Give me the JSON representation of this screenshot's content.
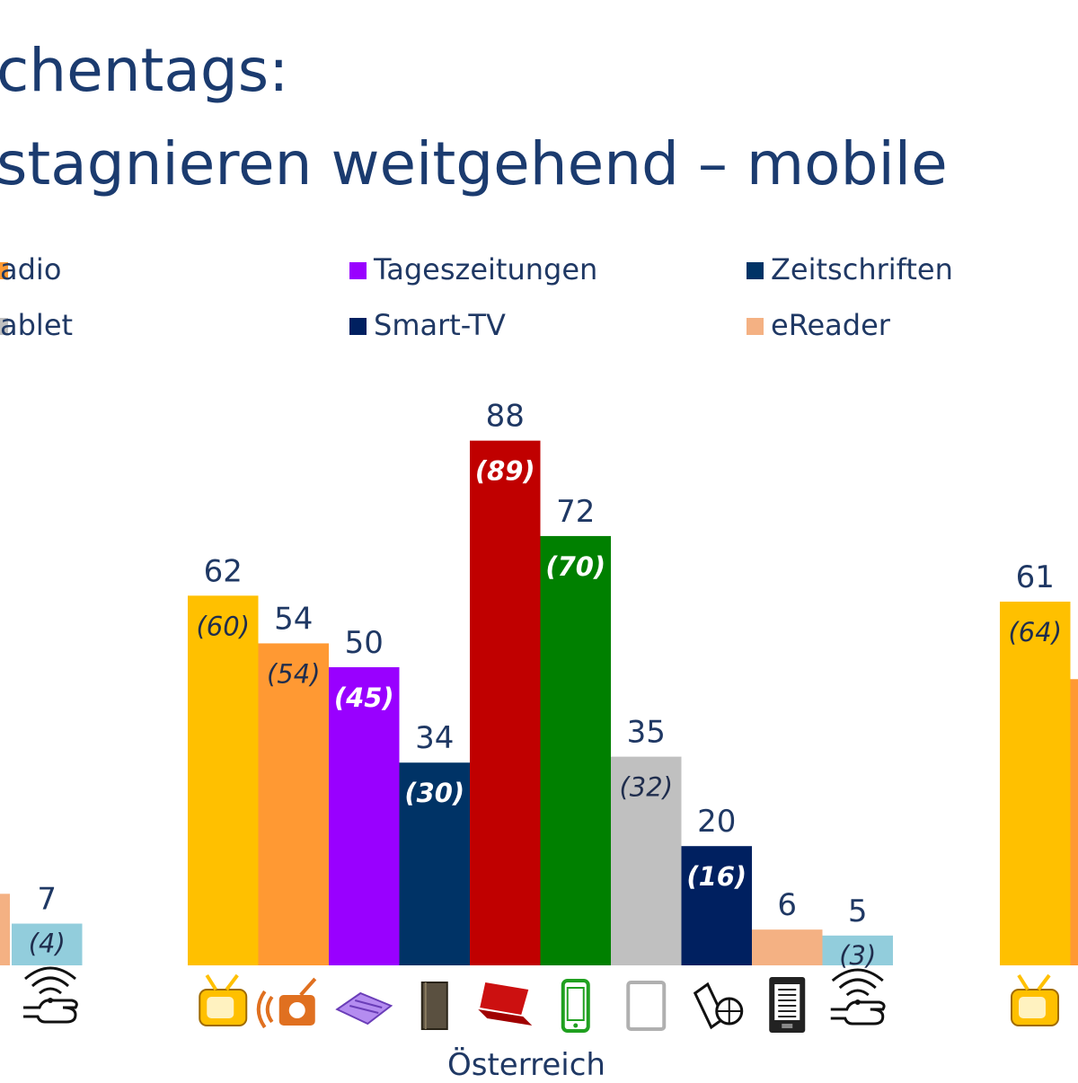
{
  "title": {
    "line1": "chentags:",
    "line2": "stagnieren weitgehend – mobile"
  },
  "legend": [
    {
      "label": "adio",
      "color": "#ff9933"
    },
    {
      "label": "Tageszeitungen",
      "color": "#9900ff"
    },
    {
      "label": "Zeitschriften",
      "color": "#003366"
    },
    {
      "label": "ablet",
      "color": "#c0c0c0"
    },
    {
      "label": "Smart-TV",
      "color": "#002060"
    },
    {
      "label": "eReader",
      "color": "#f4b183"
    }
  ],
  "chart_data": {
    "type": "bar",
    "group_label": "Österreich",
    "categories": [
      "TV",
      "Radio",
      "Tageszeitungen",
      "Zeitschriften",
      "Computer",
      "Handy",
      "Tablet",
      "Smart-TV",
      "eReader",
      "Wearable"
    ],
    "icons": [
      "tv-icon",
      "radio-icon",
      "newspaper-icon",
      "magazine-icon",
      "laptop-icon",
      "smartphone-icon",
      "tablet-icon",
      "smart-tv-icon",
      "ereader-icon",
      "wearable-icon"
    ],
    "colors": [
      "#ffc000",
      "#ff9933",
      "#9900ff",
      "#003366",
      "#c00000",
      "#008000",
      "#c0c0c0",
      "#002060",
      "#f4b183",
      "#92cddc"
    ],
    "values": [
      62,
      54,
      50,
      34,
      88,
      72,
      35,
      20,
      6,
      5
    ],
    "previous_values": [
      "(60)",
      "(54)",
      "(45)",
      "(30)",
      "(89)",
      "(70)",
      "(32)",
      "(16)",
      "",
      "(3)"
    ],
    "value_labels": [
      "62",
      "54",
      "50",
      "34",
      "88",
      "72",
      "35",
      "20",
      "6",
      "5"
    ],
    "partial_left": {
      "value_label": "7",
      "previous_label": "(4)",
      "value": 7,
      "color": "#92cddc",
      "icon": "wearable-icon"
    },
    "partial_right": {
      "value_label": "61",
      "previous_label": "(64)",
      "value": 61,
      "color": "#ffc000",
      "icon": "tv-icon"
    }
  }
}
